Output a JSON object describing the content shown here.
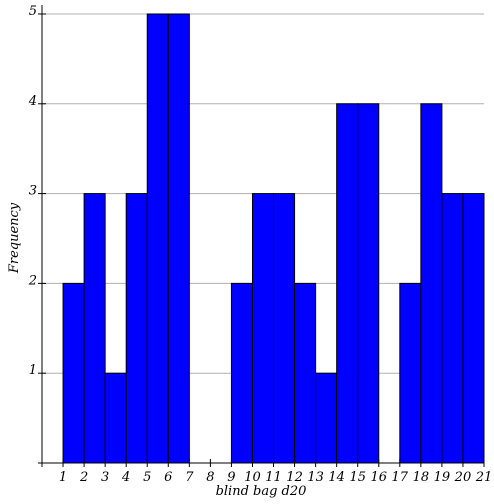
{
  "chart_data": {
    "type": "bar",
    "title": "",
    "xlabel": "blind bag d20",
    "ylabel": "Frequency",
    "bin_edges": [
      1,
      2,
      3,
      4,
      5,
      6,
      7,
      8,
      9,
      10,
      11,
      12,
      13,
      14,
      15,
      16,
      17,
      18,
      19,
      20,
      21
    ],
    "values": [
      2,
      3,
      1,
      3,
      5,
      5,
      0,
      0,
      2,
      3,
      3,
      2,
      1,
      4,
      4,
      0,
      2,
      4,
      3,
      3
    ],
    "x_ticks": [
      "1",
      "2",
      "3",
      "4",
      "5",
      "6",
      "7",
      "8",
      "9",
      "10",
      "11",
      "12",
      "13",
      "14",
      "15",
      "16",
      "17",
      "18",
      "19",
      "20",
      "21"
    ],
    "y_ticks": [
      "1",
      "2",
      "3",
      "4",
      "5"
    ],
    "xlim": [
      0,
      21
    ],
    "ylim": [
      0,
      5.1
    ],
    "grid": true,
    "bar_color": "#0000ff",
    "bar_edge_color": "#000000",
    "grid_color": "#b0b0b0"
  }
}
